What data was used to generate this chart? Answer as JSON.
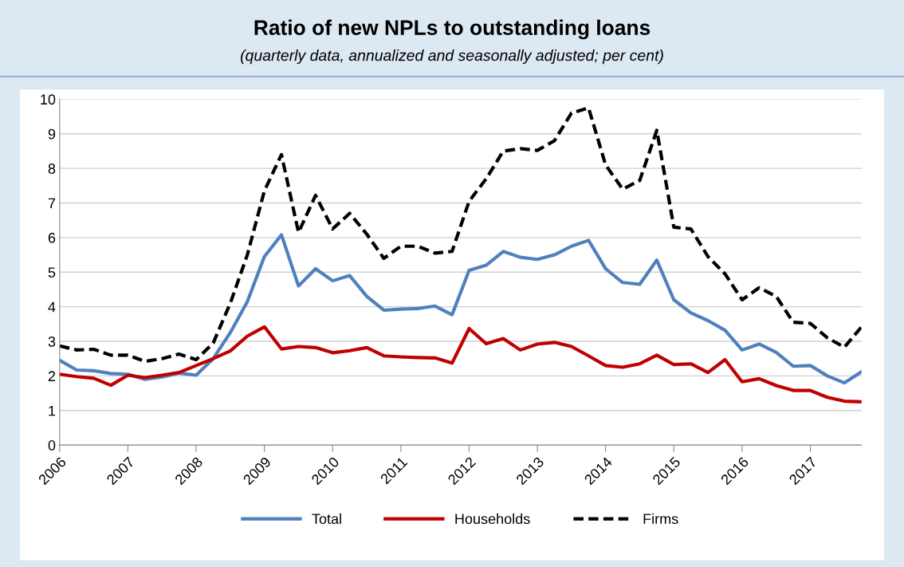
{
  "chart_data": {
    "type": "line",
    "title": "Ratio of new NPLs to outstanding loans",
    "subtitle": "(quarterly data, annualized and seasonally adjusted; per cent)",
    "x": [
      2006.0,
      2006.25,
      2006.5,
      2006.75,
      2007.0,
      2007.25,
      2007.5,
      2007.75,
      2008.0,
      2008.25,
      2008.5,
      2008.75,
      2009.0,
      2009.25,
      2009.5,
      2009.75,
      2010.0,
      2010.25,
      2010.5,
      2010.75,
      2011.0,
      2011.25,
      2011.5,
      2011.75,
      2012.0,
      2012.25,
      2012.5,
      2012.75,
      2013.0,
      2013.25,
      2013.5,
      2013.75,
      2014.0,
      2014.25,
      2014.5,
      2014.75,
      2015.0,
      2015.25,
      2015.5,
      2015.75,
      2016.0,
      2016.25,
      2016.5,
      2016.75,
      2017.0,
      2017.25,
      2017.5,
      2017.75
    ],
    "series": [
      {
        "name": "Total",
        "color": "#4f81bd",
        "line_style": "solid",
        "values": [
          2.45,
          2.17,
          2.15,
          2.07,
          2.05,
          1.9,
          1.97,
          2.08,
          2.02,
          2.5,
          3.25,
          4.15,
          5.45,
          6.08,
          4.6,
          5.1,
          4.75,
          4.9,
          4.3,
          3.9,
          3.93,
          3.95,
          4.02,
          3.77,
          5.05,
          5.2,
          5.6,
          5.43,
          5.37,
          5.5,
          5.75,
          5.92,
          5.1,
          4.7,
          4.65,
          5.35,
          4.2,
          3.82,
          3.6,
          3.32,
          2.75,
          2.92,
          2.68,
          2.28,
          2.3,
          2.0,
          1.8,
          2.12
        ]
      },
      {
        "name": "Households",
        "color": "#c00000",
        "line_style": "solid",
        "values": [
          2.05,
          1.98,
          1.93,
          1.73,
          2.02,
          1.95,
          2.02,
          2.1,
          2.3,
          2.5,
          2.72,
          3.15,
          3.42,
          2.78,
          2.85,
          2.82,
          2.67,
          2.73,
          2.82,
          2.58,
          2.55,
          2.53,
          2.52,
          2.37,
          3.37,
          2.93,
          3.08,
          2.75,
          2.92,
          2.97,
          2.85,
          2.58,
          2.3,
          2.25,
          2.35,
          2.6,
          2.33,
          2.35,
          2.1,
          2.47,
          1.83,
          1.92,
          1.72,
          1.58,
          1.58,
          1.38,
          1.27,
          1.25
        ]
      },
      {
        "name": "Firms",
        "color": "#000000",
        "line_style": "dashed",
        "values": [
          2.87,
          2.75,
          2.77,
          2.6,
          2.6,
          2.42,
          2.5,
          2.63,
          2.47,
          2.95,
          4.1,
          5.5,
          7.35,
          8.4,
          6.15,
          7.22,
          6.25,
          6.7,
          6.1,
          5.4,
          5.75,
          5.75,
          5.55,
          5.6,
          7.05,
          7.7,
          8.5,
          8.57,
          8.52,
          8.8,
          9.6,
          9.75,
          8.1,
          7.4,
          7.65,
          9.1,
          6.3,
          6.25,
          5.45,
          4.95,
          4.2,
          4.55,
          4.3,
          3.55,
          3.52,
          3.1,
          2.83,
          3.42
        ]
      }
    ],
    "xlim": [
      2006,
      2017.75
    ],
    "xticks": [
      2006,
      2007,
      2008,
      2009,
      2010,
      2011,
      2012,
      2013,
      2014,
      2015,
      2016,
      2017
    ],
    "ylim": [
      0,
      10
    ],
    "yticks": [
      0,
      1,
      2,
      3,
      4,
      5,
      6,
      7,
      8,
      9,
      10
    ],
    "grid": "y",
    "legend": "bottom",
    "marker": "none"
  }
}
